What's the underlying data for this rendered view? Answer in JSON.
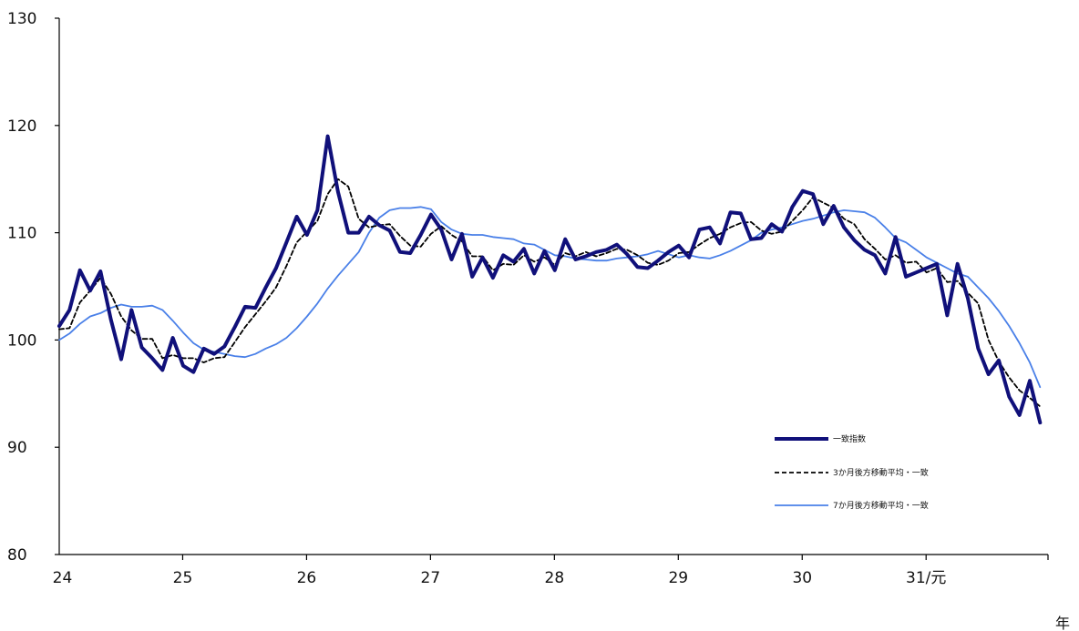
{
  "chart_data": {
    "type": "line",
    "title": "",
    "xlabel": "",
    "ylabel": "",
    "x_unit_label": "年",
    "ylim": [
      80,
      130
    ],
    "yticks": [
      80,
      90,
      100,
      110,
      120,
      130
    ],
    "xtick_labels": [
      "24",
      "25",
      "26",
      "27",
      "28",
      "29",
      "30",
      "31/元"
    ],
    "x_description": "monthly, Jan 2012 (平成24) through Oct 2019 (令和元)",
    "grid": false,
    "legend_position": "right, lower area inside plot",
    "series": [
      {
        "name": "一致指数",
        "style": "solid-thick",
        "color": "#10107a",
        "values": [
          101.3,
          102.8,
          106.5,
          104.6,
          106.4,
          101.9,
          98.2,
          102.8,
          99.3,
          98.3,
          97.2,
          100.2,
          97.6,
          97.0,
          99.2,
          98.7,
          99.4,
          101.2,
          103.1,
          103.0,
          104.9,
          106.7,
          109.1,
          111.5,
          109.8,
          112.1,
          119.0,
          113.8,
          110.0,
          110.0,
          111.5,
          110.7,
          110.2,
          108.2,
          108.1,
          109.8,
          111.7,
          110.3,
          107.5,
          109.9,
          105.9,
          107.7,
          105.8,
          107.9,
          107.3,
          108.5,
          106.2,
          108.3,
          106.5,
          109.4,
          107.5,
          107.8,
          108.2,
          108.4,
          108.9,
          108.0,
          106.8,
          106.7,
          107.4,
          108.2,
          108.8,
          107.7,
          110.3,
          110.5,
          109.0,
          111.9,
          111.8,
          109.4,
          109.5,
          110.8,
          110.1,
          112.4,
          113.9,
          113.6,
          110.8,
          112.5,
          110.5,
          109.3,
          108.4,
          107.9,
          106.2,
          109.6,
          105.9,
          106.3,
          106.7,
          107.1,
          102.3,
          107.1,
          103.9,
          99.2,
          96.8,
          98.1,
          94.7,
          93.0,
          96.2,
          92.3
        ]
      },
      {
        "name": "3か月後方移動平均・一致",
        "style": "dashed",
        "color": "#000000",
        "values": [
          101.0,
          101.1,
          103.5,
          104.6,
          105.8,
          104.3,
          102.2,
          100.9,
          100.1,
          100.1,
          98.3,
          98.6,
          98.3,
          98.3,
          97.9,
          98.3,
          98.4,
          99.8,
          101.2,
          102.4,
          103.6,
          104.9,
          106.9,
          109.1,
          110.1,
          111.1,
          113.6,
          115.0,
          114.3,
          111.3,
          110.5,
          110.7,
          110.8,
          109.7,
          108.8,
          108.7,
          109.9,
          110.6,
          109.8,
          109.2,
          107.8,
          107.8,
          106.5,
          107.1,
          107.0,
          107.9,
          107.3,
          107.7,
          107.0,
          108.1,
          107.8,
          108.2,
          107.8,
          108.1,
          108.5,
          108.4,
          107.9,
          107.2,
          107.0,
          107.4,
          108.1,
          108.2,
          108.9,
          109.5,
          109.9,
          110.5,
          110.9,
          111.0,
          110.2,
          109.9,
          110.1,
          111.1,
          112.1,
          113.3,
          112.8,
          112.3,
          111.3,
          110.8,
          109.4,
          108.5,
          107.5,
          107.9,
          107.2,
          107.3,
          106.3,
          106.7,
          105.4,
          105.5,
          104.4,
          103.4,
          100.0,
          98.0,
          96.5,
          95.3,
          94.6,
          93.8
        ]
      },
      {
        "name": "7か月後方移動平均・一致",
        "style": "solid-thin",
        "color": "#4a80e8",
        "values": [
          100.0,
          100.6,
          101.5,
          102.2,
          102.5,
          103.0,
          103.3,
          103.1,
          103.1,
          103.2,
          102.8,
          101.8,
          100.7,
          99.7,
          99.1,
          98.9,
          98.7,
          98.5,
          98.4,
          98.7,
          99.2,
          99.6,
          100.2,
          101.1,
          102.2,
          103.4,
          104.8,
          106.0,
          107.1,
          108.2,
          110.0,
          111.4,
          112.1,
          112.3,
          112.3,
          112.4,
          112.2,
          111.0,
          110.3,
          109.9,
          109.8,
          109.8,
          109.6,
          109.5,
          109.4,
          109.0,
          108.9,
          108.4,
          107.9,
          107.8,
          107.6,
          107.5,
          107.4,
          107.4,
          107.6,
          107.7,
          107.8,
          108.0,
          108.3,
          108.0,
          107.7,
          107.9,
          107.7,
          107.6,
          107.9,
          108.3,
          108.8,
          109.3,
          110.0,
          110.3,
          110.5,
          110.8,
          111.1,
          111.3,
          111.6,
          111.9,
          112.1,
          112.0,
          111.9,
          111.4,
          110.5,
          109.5,
          109.1,
          108.4,
          107.7,
          107.2,
          106.7,
          106.2,
          105.9,
          104.9,
          103.9,
          102.7,
          101.3,
          99.7,
          97.9,
          95.6
        ]
      }
    ]
  }
}
